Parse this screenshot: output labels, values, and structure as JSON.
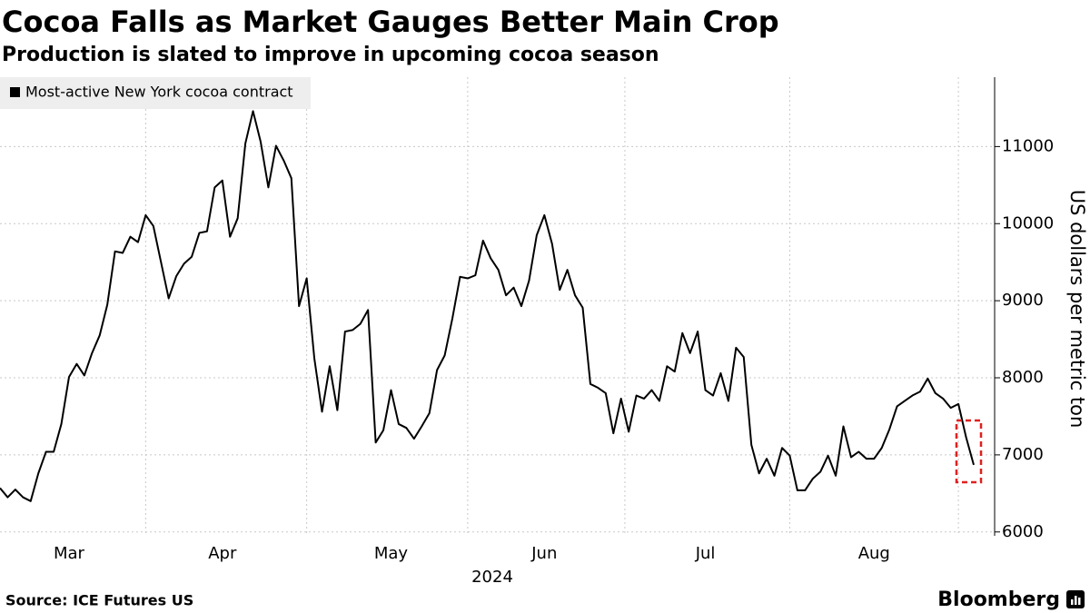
{
  "chart_data": {
    "type": "line",
    "title": "Cocoa Falls as Market Gauges Better Main Crop",
    "subtitle": "Production is slated to improve in upcoming cocoa season",
    "y_label": "US dollars per metric ton",
    "x_label": "2024",
    "source": "Source: ICE Futures US",
    "brand": "Bloomberg",
    "categories": [
      null,
      null,
      null,
      null,
      null,
      null,
      null,
      null,
      null,
      "Mar",
      null,
      null,
      null,
      null,
      null,
      null,
      null,
      null,
      null,
      null,
      null,
      null,
      null,
      null,
      null,
      null,
      null,
      null,
      null,
      "Apr",
      null,
      null,
      null,
      null,
      null,
      null,
      null,
      null,
      null,
      null,
      null,
      null,
      null,
      null,
      null,
      null,
      null,
      null,
      null,
      null,
      null,
      "May",
      null,
      null,
      null,
      null,
      null,
      null,
      null,
      null,
      null,
      null,
      null,
      null,
      null,
      null,
      null,
      null,
      null,
      null,
      null,
      "Jun",
      null,
      null,
      null,
      null,
      null,
      null,
      null,
      null,
      null,
      null,
      null,
      null,
      null,
      null,
      null,
      null,
      null,
      null,
      null,
      null,
      "Jul",
      null,
      null,
      null,
      null,
      null,
      null,
      null,
      null,
      null,
      null,
      null,
      null,
      null,
      null,
      null,
      null,
      null,
      null,
      null,
      null,
      null,
      "Aug",
      null,
      null,
      null,
      null,
      null,
      null,
      null,
      null,
      null,
      null,
      null,
      null,
      null
    ],
    "series": [
      {
        "name": "Most-active New York cocoa contract",
        "color": "#000000",
        "values": [
          6570,
          6450,
          6550,
          6450,
          6400,
          6760,
          7040,
          7040,
          7400,
          8010,
          8180,
          8030,
          8320,
          8550,
          8950,
          9640,
          9620,
          9830,
          9760,
          10110,
          9970,
          9500,
          9030,
          9320,
          9480,
          9570,
          9880,
          9900,
          10470,
          10560,
          9830,
          10070,
          11040,
          11460,
          11060,
          10470,
          11010,
          10820,
          10590,
          8930,
          9290,
          8250,
          7560,
          8150,
          7580,
          8600,
          8620,
          8700,
          8880,
          7160,
          7320,
          7840,
          7400,
          7350,
          7210,
          7370,
          7540,
          8100,
          8290,
          8770,
          9310,
          9290,
          9330,
          9780,
          9550,
          9400,
          9070,
          9170,
          8930,
          9260,
          9850,
          10110,
          9740,
          9140,
          9400,
          9070,
          8910,
          7920,
          7870,
          7800,
          7280,
          7730,
          7300,
          7770,
          7730,
          7840,
          7700,
          8150,
          8080,
          8580,
          8320,
          8600,
          7840,
          7770,
          8060,
          7700,
          8390,
          8270,
          7130,
          6760,
          6950,
          6730,
          7090,
          6990,
          6540,
          6540,
          6690,
          6780,
          6990,
          6730,
          7370,
          6970,
          7040,
          6950,
          6950,
          7090,
          7330,
          7630,
          7700,
          7770,
          7820,
          7990,
          7800,
          7730,
          7610,
          7660,
          7230,
          6870
        ]
      }
    ],
    "ylim": [
      5950,
      11900
    ],
    "yticks": [
      6000,
      7000,
      8000,
      9000,
      10000,
      11000
    ],
    "grid": true,
    "legend": "top-left"
  }
}
